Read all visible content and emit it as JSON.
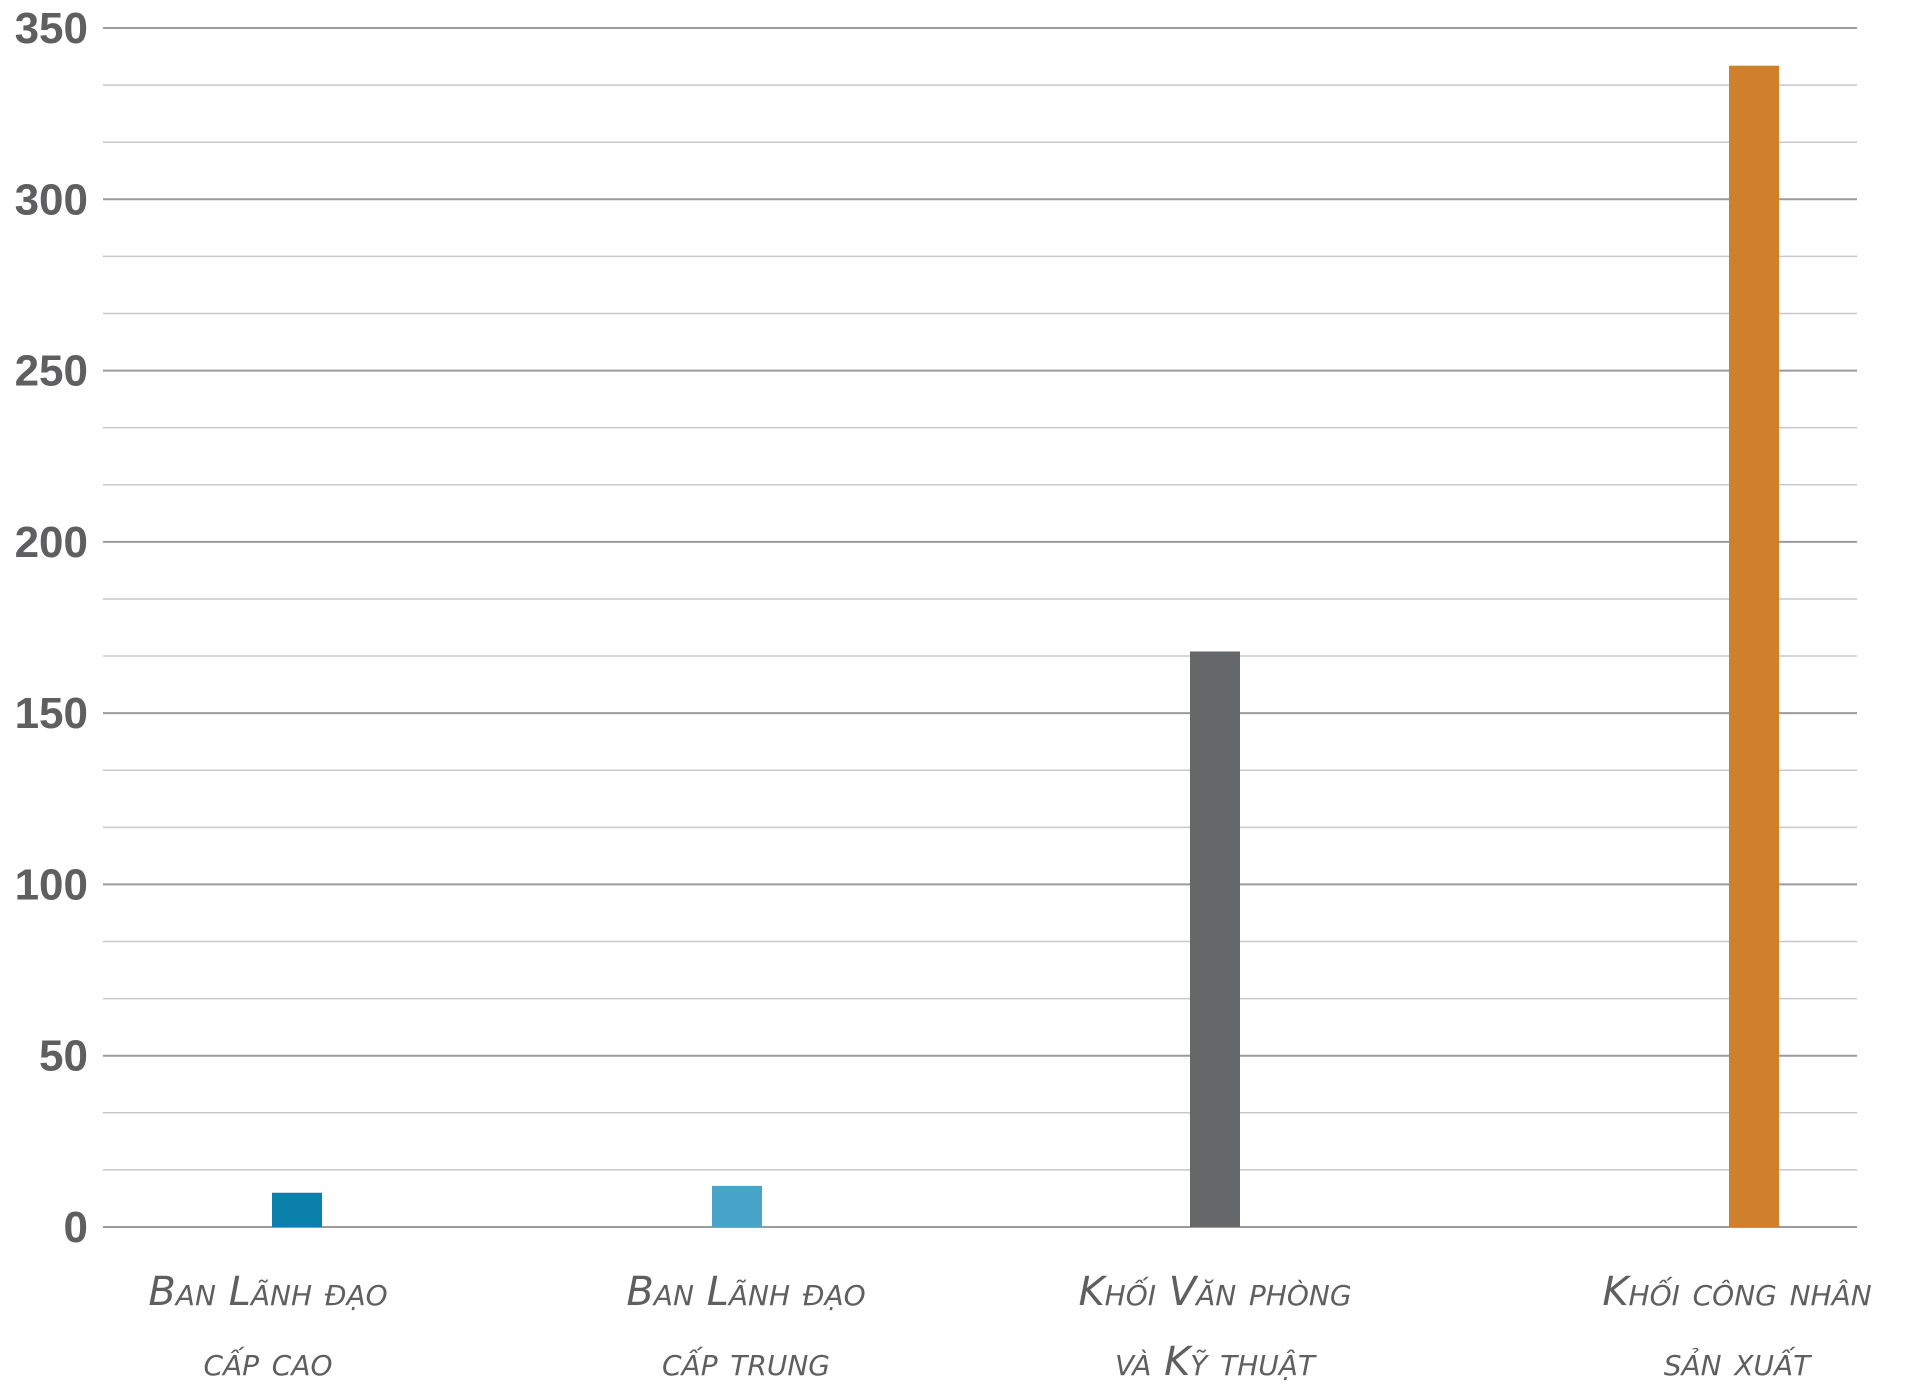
{
  "chart_data": {
    "type": "bar",
    "categories": [
      [
        "Ban Lãnh đạo",
        "cấp cao"
      ],
      [
        "Ban Lãnh đạo",
        "cấp trung"
      ],
      [
        "Khối Văn phòng",
        "và Kỹ thuật"
      ],
      [
        "Khối công nhân",
        "sản xuất"
      ]
    ],
    "values": [
      10,
      12,
      168,
      339
    ],
    "colors": [
      "#0a80aa",
      "#48a4c8",
      "#666769",
      "#d0802a"
    ],
    "ylim": [
      0,
      350
    ],
    "yticks": [
      "0",
      "50",
      "100",
      "150",
      "200",
      "250",
      "300",
      "350"
    ],
    "grid": true,
    "title": "",
    "xlabel": "",
    "ylabel": ""
  }
}
